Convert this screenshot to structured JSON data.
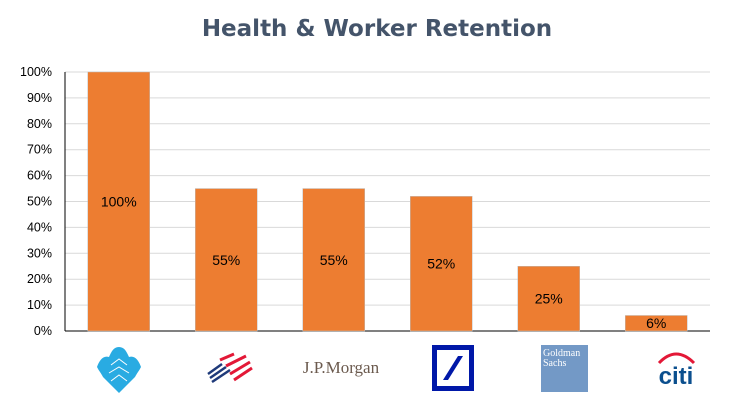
{
  "chart_data": {
    "type": "bar",
    "title": "Health & Worker Retention",
    "xlabel": "",
    "ylabel": "",
    "ylim": [
      0,
      100
    ],
    "y_ticks": [
      "0%",
      "10%",
      "20%",
      "30%",
      "40%",
      "50%",
      "60%",
      "70%",
      "80%",
      "90%",
      "100%"
    ],
    "grid": true,
    "categories": [
      "Barclays",
      "Bank of America",
      "J.P.Morgan",
      "Deutsche Bank",
      "Goldman Sachs",
      "Citi"
    ],
    "values": [
      100,
      55,
      55,
      52,
      25,
      6
    ],
    "data_labels": [
      "100%",
      "55%",
      "55%",
      "52%",
      "25%",
      "6%"
    ],
    "logo_text": {
      "jpmorgan": "J.P.Morgan",
      "goldman_line1": "Goldman",
      "goldman_line2": "Sachs",
      "citi": "citi"
    },
    "colors": {
      "bar": "#ed7d31",
      "title": "#44546a",
      "grid": "#d9d9d9"
    }
  }
}
